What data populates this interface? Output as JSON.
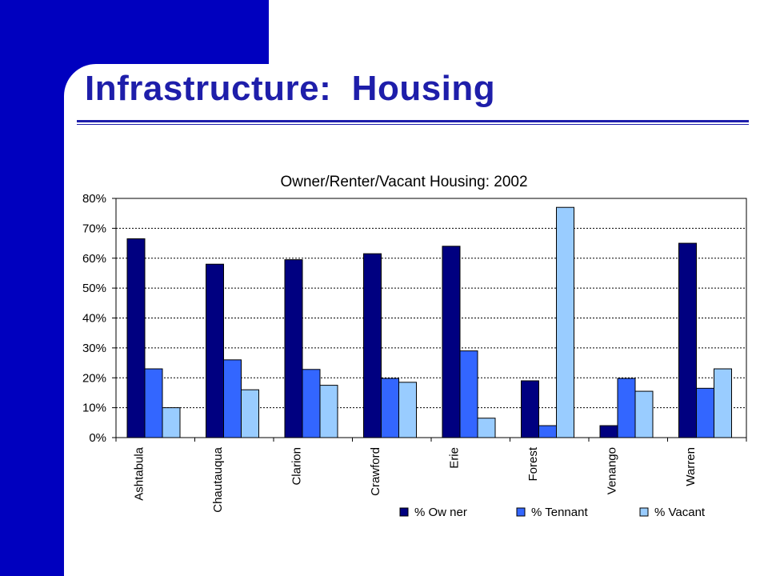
{
  "slide": {
    "title": "Infrastructure:  Housing",
    "brand_color": "#0000bf",
    "title_color": "#1e1eaa"
  },
  "chart_data": {
    "type": "bar",
    "title": "Owner/Renter/Vacant Housing: 2002",
    "xlabel": "",
    "ylabel": "",
    "ylim": [
      0,
      80
    ],
    "yticks": [
      "0%",
      "10%",
      "20%",
      "30%",
      "40%",
      "50%",
      "60%",
      "70%",
      "80%"
    ],
    "y_unit": "%",
    "grid": "horizontal dotted",
    "legend_position": "bottom",
    "categories": [
      "Ashtabula",
      "Chautauqua",
      "Clarion",
      "Crawford",
      "Erie",
      "Forest",
      "Venango",
      "Warren"
    ],
    "series": [
      {
        "name": "% Ow ner",
        "color": "#000080",
        "values": [
          66.5,
          58,
          59.5,
          61.5,
          64,
          19,
          4,
          65
        ]
      },
      {
        "name": "% Tennant",
        "color": "#3366ff",
        "values": [
          23,
          26,
          22.8,
          19.8,
          29,
          4,
          19.8,
          16.5
        ]
      },
      {
        "name": "% Vacant",
        "color": "#99ccff",
        "values": [
          10,
          16,
          17.5,
          18.5,
          6.5,
          77,
          15.5,
          23
        ]
      }
    ]
  }
}
